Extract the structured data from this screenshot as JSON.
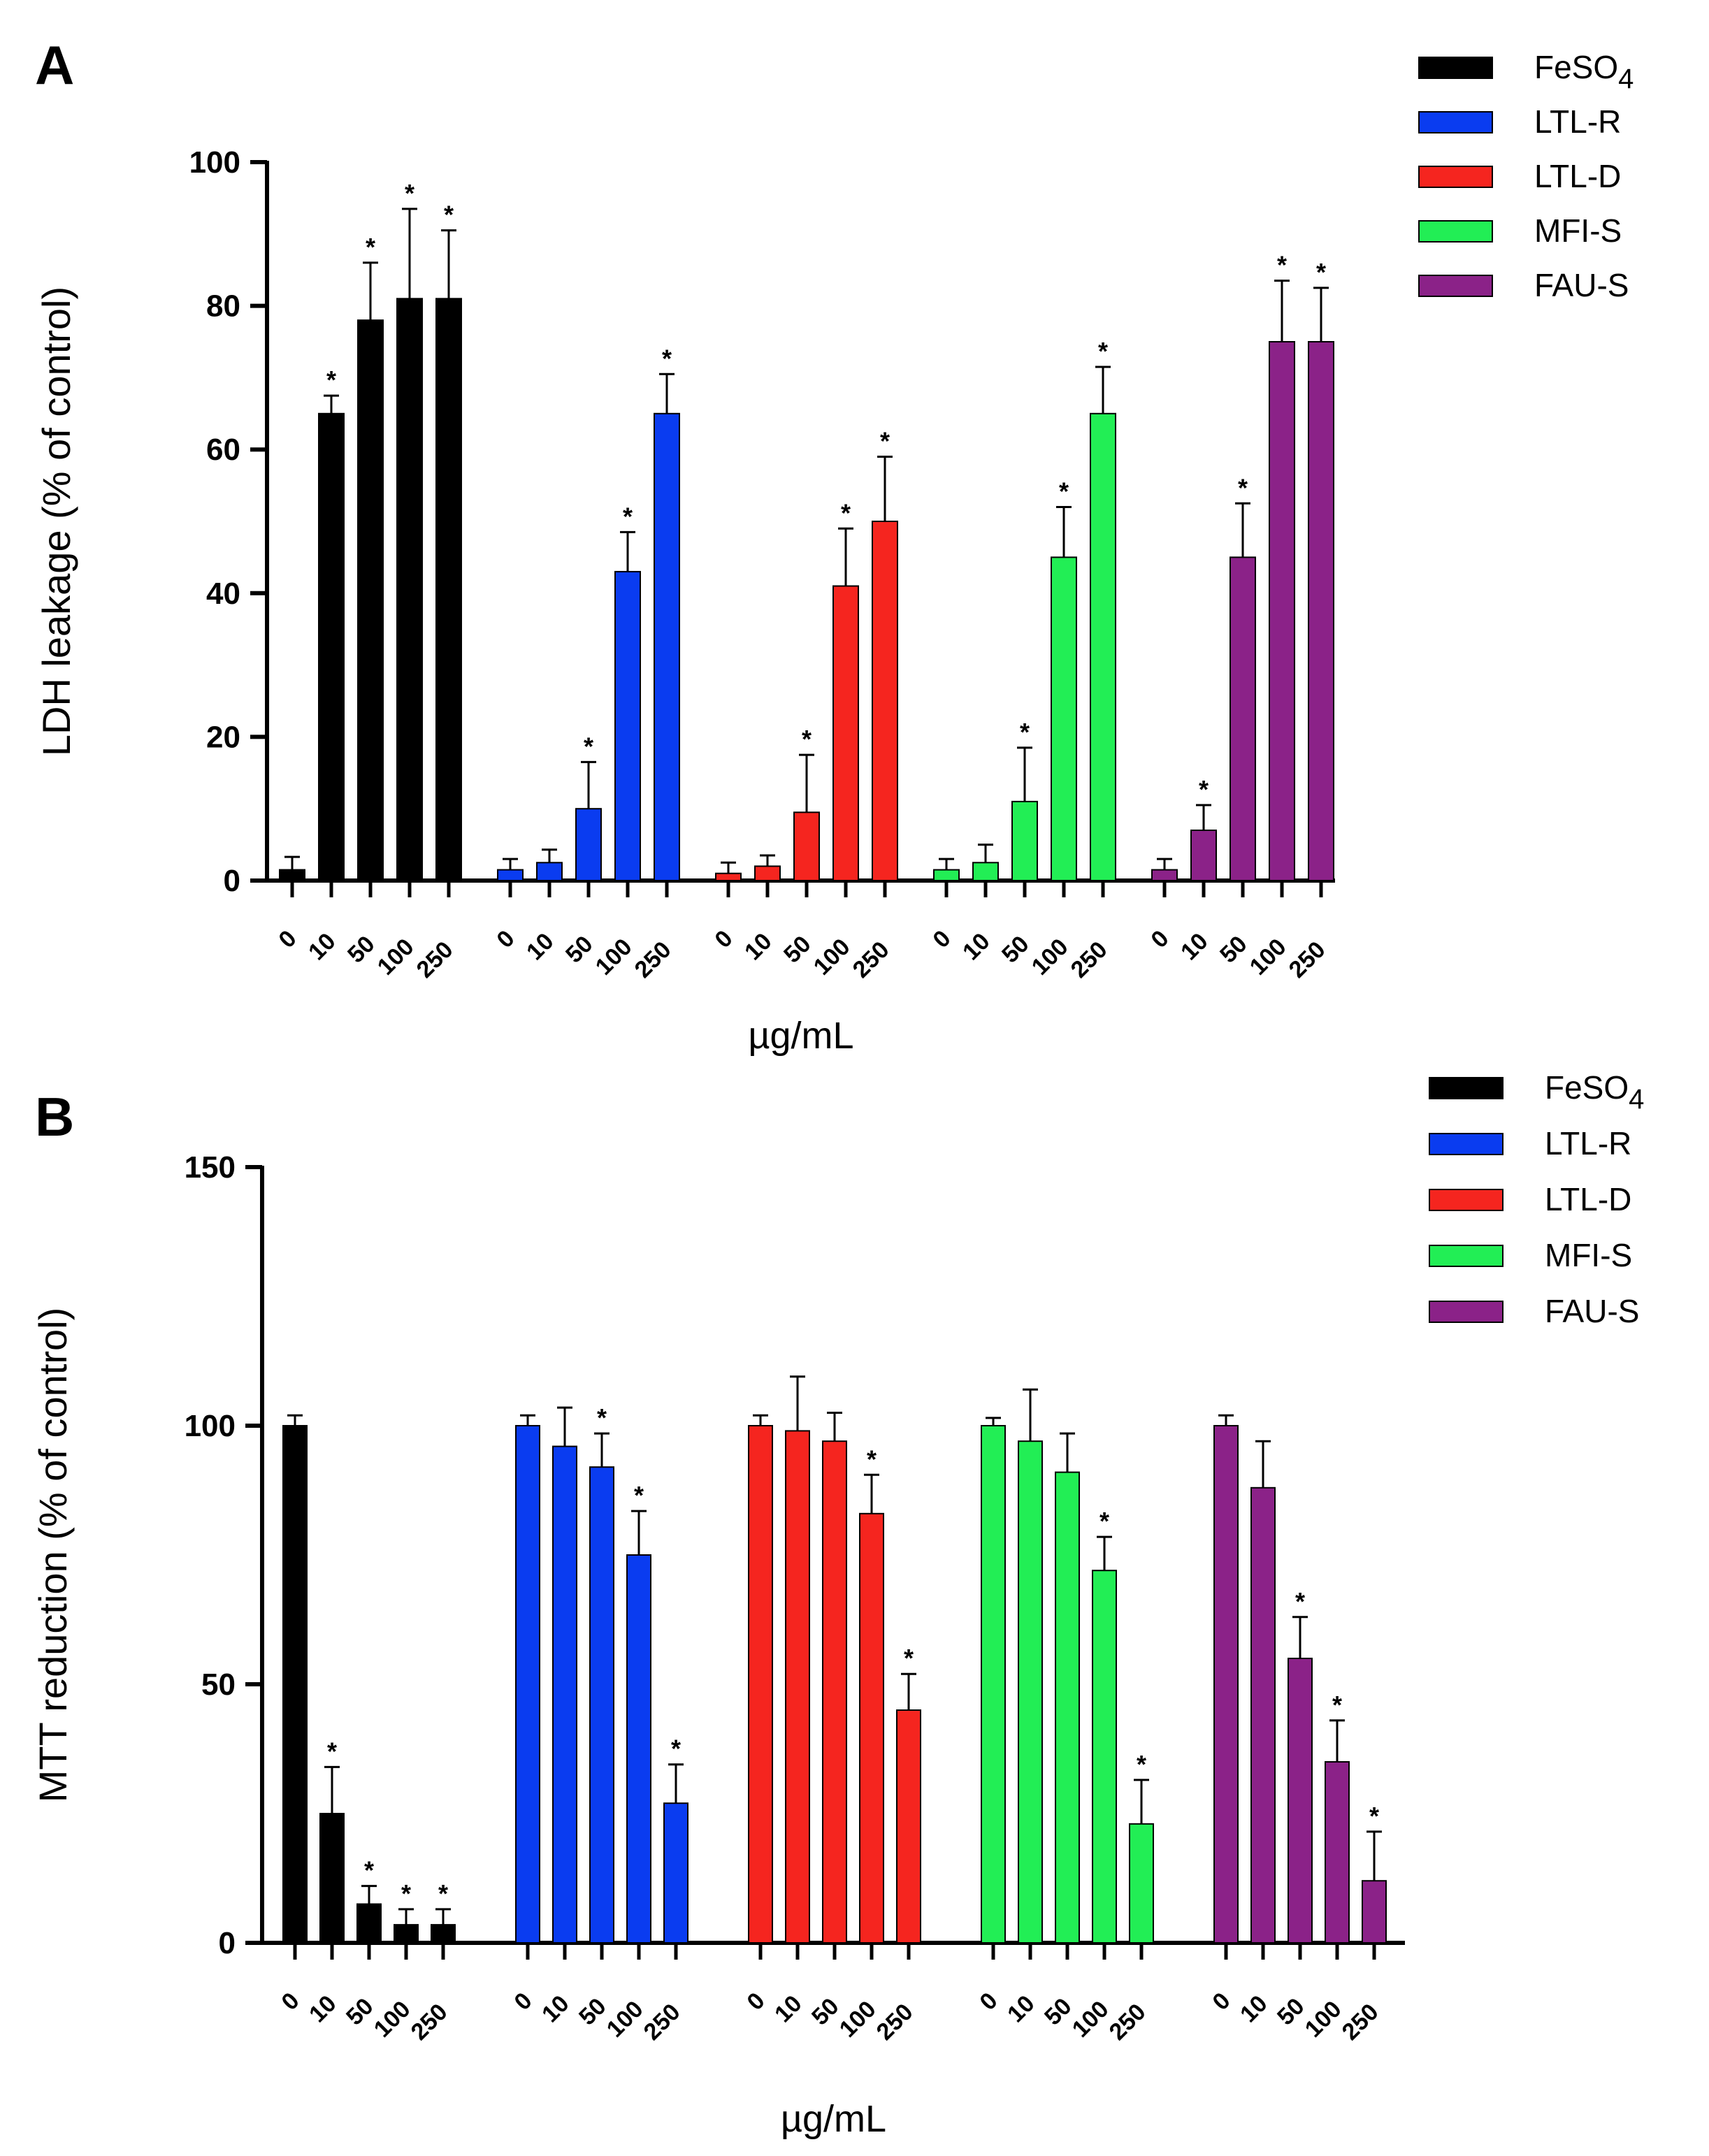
{
  "chart_data": [
    {
      "type": "bar",
      "panel": "A",
      "ylabel": "LDH leakage (% of control)",
      "xlabel": "µg/mL",
      "ylim": [
        0,
        100
      ],
      "yticks": [
        0,
        20,
        40,
        60,
        80,
        100
      ],
      "categories": [
        "0",
        "10",
        "50",
        "100",
        "250"
      ],
      "legend_position": "top-right",
      "series": [
        {
          "name": "FeSO",
          "name_sub": "4",
          "color": "#000000",
          "values": [
            1.5,
            65,
            78,
            81,
            81
          ],
          "errors": [
            1.8,
            2.5,
            8,
            12.5,
            9.5
          ],
          "significant": [
            false,
            true,
            true,
            true,
            true
          ]
        },
        {
          "name": "LTL-R",
          "color": "#0a3cf0",
          "values": [
            1.5,
            2.5,
            10,
            43,
            65
          ],
          "errors": [
            1.5,
            1.8,
            6.5,
            5.5,
            5.5
          ],
          "significant": [
            false,
            false,
            true,
            true,
            true
          ]
        },
        {
          "name": "LTL-D",
          "color": "#f5251f",
          "values": [
            1,
            2,
            9.5,
            41,
            50
          ],
          "errors": [
            1.5,
            1.5,
            8,
            8,
            9
          ],
          "significant": [
            false,
            false,
            true,
            true,
            true
          ]
        },
        {
          "name": "MFI-S",
          "color": "#22ee55",
          "values": [
            1.5,
            2.5,
            11,
            45,
            65
          ],
          "errors": [
            1.5,
            2.5,
            7.5,
            7,
            6.5
          ],
          "significant": [
            false,
            false,
            true,
            true,
            true
          ]
        },
        {
          "name": "FAU-S",
          "color": "#8b2288",
          "values": [
            1.5,
            7,
            45,
            75,
            75
          ],
          "errors": [
            1.5,
            3.5,
            7.5,
            8.5,
            7.5
          ],
          "significant": [
            false,
            true,
            true,
            true,
            true
          ]
        }
      ]
    },
    {
      "type": "bar",
      "panel": "B",
      "ylabel": "MTT reduction (% of control)",
      "xlabel": "µg/mL",
      "ylim": [
        0,
        150
      ],
      "yticks": [
        0,
        50,
        100,
        150
      ],
      "categories": [
        "0",
        "10",
        "50",
        "100",
        "250"
      ],
      "legend_position": "top-right",
      "series": [
        {
          "name": "FeSO",
          "name_sub": "4",
          "color": "#000000",
          "values": [
            100,
            25,
            7.5,
            3.5,
            3.5
          ],
          "errors": [
            2,
            9,
            3.5,
            3,
            3
          ],
          "significant": [
            false,
            true,
            true,
            true,
            true
          ]
        },
        {
          "name": "LTL-R",
          "color": "#0a3cf0",
          "values": [
            100,
            96,
            92,
            75,
            27
          ],
          "errors": [
            2,
            7.5,
            6.5,
            8.5,
            7.5
          ],
          "significant": [
            false,
            false,
            true,
            true,
            true
          ]
        },
        {
          "name": "LTL-D",
          "color": "#f5251f",
          "values": [
            100,
            99,
            97,
            83,
            45
          ],
          "errors": [
            2,
            10.5,
            5.5,
            7.5,
            7
          ],
          "significant": [
            false,
            false,
            false,
            true,
            true
          ]
        },
        {
          "name": "MFI-S",
          "color": "#22ee55",
          "values": [
            100,
            97,
            91,
            72,
            23
          ],
          "errors": [
            1.5,
            10,
            7.5,
            6.5,
            8.5
          ],
          "significant": [
            false,
            false,
            false,
            true,
            true
          ]
        },
        {
          "name": "FAU-S",
          "color": "#8b2288",
          "values": [
            100,
            88,
            55,
            35,
            12
          ],
          "errors": [
            2,
            9,
            8,
            8,
            9.5
          ],
          "significant": [
            false,
            false,
            true,
            true,
            true
          ]
        }
      ]
    }
  ]
}
